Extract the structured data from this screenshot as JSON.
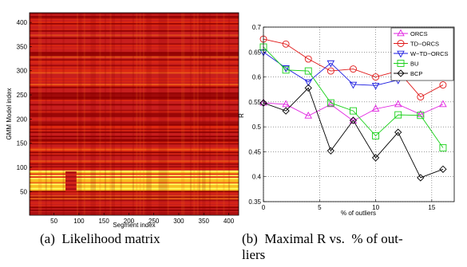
{
  "chart_data": [
    {
      "type": "heatmap",
      "xlabel": "Segment index",
      "ylabel": "GMM Model index",
      "xlim": [
        1,
        420
      ],
      "ylim": [
        1,
        420
      ],
      "xticks": [
        50,
        100,
        150,
        200,
        250,
        300,
        350,
        400
      ],
      "yticks": [
        50,
        100,
        150,
        200,
        250,
        300,
        350,
        400
      ],
      "colormap": [
        "#8b0000",
        "#c81e1e",
        "#e02a10",
        "#f06418",
        "#f8c020",
        "#ffff60"
      ],
      "description_bands": {
        "hot_rows_from": 50,
        "hot_rows_to": 92,
        "cold_column_gap": [
          73,
          95
        ]
      }
    },
    {
      "type": "line",
      "xlabel": "% of outliers",
      "ylabel": "R",
      "xlim": [
        0,
        17
      ],
      "ylim": [
        0.35,
        0.7
      ],
      "xticks": [
        0,
        5,
        10,
        15
      ],
      "yticks": [
        0.35,
        0.4,
        0.45,
        0.5,
        0.55,
        0.6,
        0.65,
        0.7
      ],
      "grid": true,
      "legend_position": "top-right",
      "x": [
        0,
        2,
        4,
        6,
        8,
        10,
        12,
        14,
        16
      ],
      "series": [
        {
          "name": "ORCS",
          "color": "#e020e0",
          "marker": "triangle-up",
          "values": [
            0.548,
            0.545,
            0.522,
            0.545,
            0.512,
            0.536,
            0.545,
            0.525,
            0.545
          ]
        },
        {
          "name": "TD−ORCS",
          "color": "#e01818",
          "marker": "circle",
          "values": [
            0.676,
            0.666,
            0.636,
            0.612,
            0.616,
            0.6,
            0.612,
            0.56,
            0.584
          ]
        },
        {
          "name": "W−TD−ORCS",
          "color": "#1a1ae0",
          "marker": "triangle-down",
          "values": [
            0.65,
            0.618,
            0.59,
            0.628,
            0.585,
            0.583,
            0.594,
            0.608,
            0.608
          ]
        },
        {
          "name": "BU",
          "color": "#18d018",
          "marker": "square",
          "values": [
            0.66,
            0.614,
            0.612,
            0.548,
            0.532,
            0.482,
            0.524,
            0.523,
            0.458
          ]
        },
        {
          "name": "BCP",
          "color": "#000000",
          "marker": "diamond",
          "values": [
            0.548,
            0.532,
            0.578,
            0.452,
            0.513,
            0.438,
            0.489,
            0.398,
            0.415
          ]
        }
      ]
    }
  ],
  "captions": {
    "a": "(a) Likelihood matrix",
    "b_line1": "(b) Maximal R vs. % of out-",
    "b_line2": "liers"
  }
}
